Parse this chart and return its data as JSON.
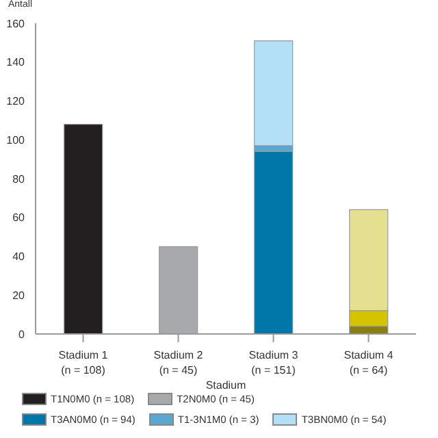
{
  "chart_data": {
    "type": "bar",
    "ylabel": "Antall",
    "xlabel": "Stadium",
    "stacked": true,
    "categories": [
      "Stadium 1\n(n = 108)",
      "Stadium 2\n(n = 45)",
      "Stadium 3\n(n = 151)",
      "Stadium 4\n(n = 64)"
    ],
    "series": [
      {
        "name": "T1N0M0 (n = 108)",
        "color": "#231f20",
        "values": [
          108,
          null,
          null,
          null
        ]
      },
      {
        "name": "T2N0M0 (n = 45)",
        "color": "#a7a9ac",
        "values": [
          null,
          45,
          null,
          null
        ]
      },
      {
        "name": "T3AN0M0 (n = 94)",
        "color": "#0077a8",
        "values": [
          null,
          null,
          94,
          null
        ]
      },
      {
        "name": "T1-3N1M0 (n = 3)",
        "color": "#5aa7d0",
        "values": [
          null,
          null,
          3,
          null
        ]
      },
      {
        "name": "T3BN0M0 (n = 54)",
        "color": "#b3e0f7",
        "values": [
          null,
          null,
          54,
          null
        ]
      },
      {
        "color": "#8a7f10",
        "values": [
          null,
          null,
          null,
          4
        ]
      },
      {
        "color": "#d6c300",
        "values": [
          null,
          null,
          null,
          8
        ]
      },
      {
        "color": "#e5e08f",
        "values": [
          null,
          null,
          null,
          52
        ]
      }
    ],
    "ylim": [
      0,
      160
    ],
    "yticks": [
      0,
      20,
      40,
      60,
      80,
      100,
      120,
      140,
      160
    ],
    "legend": "bottom"
  }
}
